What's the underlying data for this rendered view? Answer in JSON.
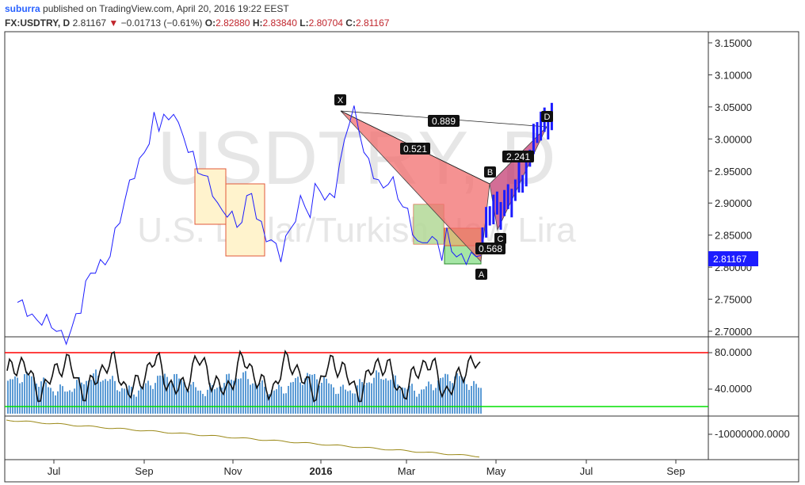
{
  "header": {
    "author": "suburra",
    "published_text": "published on TradingView.com, April 20, 2016 19:22 EEST",
    "symbol": "FX:USDTRY, D",
    "last": "2.81167",
    "change": "−0.01713 (−0.61%)",
    "open_label": "O:",
    "open": "2.82880",
    "high_label": "H:",
    "high": "2.83840",
    "low_label": "L:",
    "low": "2.80704",
    "close_label": "C:",
    "close": "2.81167"
  },
  "watermark": {
    "ticker": "USDTRY, D",
    "description": "U.S. Dollar/Turkish New Lira"
  },
  "colors": {
    "price_line": "#1c1cff",
    "price_tag": "#1c1cff",
    "pattern_red": "#f26d6d",
    "pattern_purple": "#9c27b0",
    "box_yellow": "#fff3cd",
    "box_orange": "#f4a460",
    "box_green": "#a5e6a5",
    "osc_upper": "#ff0000",
    "osc_lower": "#00e000",
    "histogram": "#5b9bd5",
    "lower_line": "#9c8a1a"
  },
  "chart_data": {
    "type": "line",
    "title": "FX:USDTRY, D",
    "x_ticks": [
      "Jul",
      "Sep",
      "Nov",
      "2016",
      "Mar",
      "May",
      "Jul",
      "Sep"
    ],
    "y_ticks": [
      "3.15000",
      "3.10000",
      "3.05000",
      "3.00000",
      "2.95000",
      "2.90000",
      "2.85000",
      "2.80000",
      "2.75000",
      "2.70000"
    ],
    "ylim": [
      2.69,
      3.165
    ],
    "last_price_tag": "2.81167",
    "harmonic_pattern": {
      "points": [
        "X",
        "A",
        "B",
        "C",
        "D"
      ],
      "ratios": [
        "0.889",
        "0.521",
        "2.241",
        "0.568"
      ]
    },
    "oscillator": {
      "y_ticks": [
        "80.0000",
        "40.0000"
      ],
      "upper_level": 80,
      "lower_level": 20
    },
    "lower_panel": {
      "y_ticks": [
        "-10000000.0000"
      ]
    },
    "series": [
      {
        "values": [
          2.745,
          2.74,
          2.735,
          2.72,
          2.715,
          2.72,
          2.715,
          2.71,
          2.705,
          2.69,
          2.69,
          2.7,
          2.72,
          2.74,
          2.77,
          2.79,
          2.8,
          2.8,
          2.81,
          2.82,
          2.85,
          2.88,
          2.9,
          2.93,
          2.95,
          2.96,
          2.98,
          3.0,
          3.03,
          3.02,
          3.04,
          3.02,
          3.05,
          3.02,
          3.0,
          2.99,
          2.97,
          2.95,
          2.95,
          2.93,
          2.92,
          2.9,
          2.88,
          2.89,
          2.88,
          2.86,
          2.88,
          2.9,
          2.92,
          2.88,
          2.86,
          2.85,
          2.84,
          2.83,
          2.82,
          2.84,
          2.86,
          2.88,
          2.9,
          2.9,
          2.88,
          2.92,
          2.93,
          2.9,
          2.91,
          2.92,
          2.95,
          3.0,
          3.03,
          3.04,
          3.02,
          2.98,
          2.96,
          2.95,
          2.93,
          2.92,
          2.94,
          2.93,
          2.91,
          2.9,
          2.88,
          2.86,
          2.84,
          2.83,
          2.85,
          2.84,
          2.84,
          2.82,
          2.85,
          2.83,
          2.82,
          2.81,
          2.815,
          2.82,
          2.81,
          2.83,
          2.85,
          2.87,
          2.88,
          2.89,
          2.9,
          2.88,
          2.9,
          2.91,
          2.9,
          2.92,
          2.94,
          2.93,
          2.95,
          2.97,
          3.0,
          3.01,
          3.02,
          3.03,
          3.02,
          3.035
        ]
      }
    ]
  }
}
